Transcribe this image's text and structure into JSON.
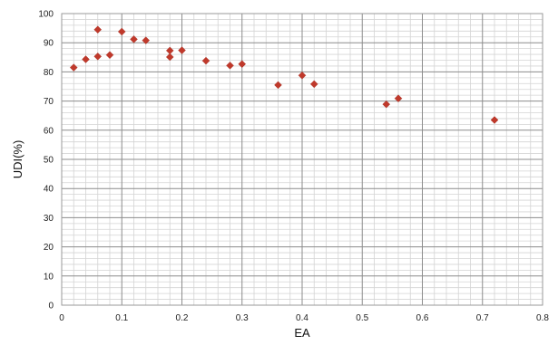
{
  "chart_data": {
    "type": "scatter",
    "title": "",
    "xlabel": "EA",
    "ylabel": "UDI(%)",
    "xlim": [
      0,
      0.8
    ],
    "ylim": [
      0,
      100
    ],
    "x_ticks": [
      "0",
      "0.1",
      "0.2",
      "0.3",
      "0.4",
      "0.5",
      "0.6",
      "0.7",
      "0.8"
    ],
    "y_ticks": [
      "0",
      "10",
      "20",
      "30",
      "40",
      "50",
      "60",
      "70",
      "80",
      "90",
      "100"
    ],
    "grid": true,
    "legend": "none",
    "marker": "diamond",
    "marker_color": "#C0392B",
    "series": [
      {
        "points": [
          {
            "x": 0.02,
            "y": 81.5
          },
          {
            "x": 0.04,
            "y": 84.3
          },
          {
            "x": 0.06,
            "y": 94.5
          },
          {
            "x": 0.06,
            "y": 85.3
          },
          {
            "x": 0.08,
            "y": 85.8
          },
          {
            "x": 0.1,
            "y": 93.8
          },
          {
            "x": 0.12,
            "y": 91.2
          },
          {
            "x": 0.14,
            "y": 90.8
          },
          {
            "x": 0.18,
            "y": 87.3
          },
          {
            "x": 0.18,
            "y": 85.1
          },
          {
            "x": 0.2,
            "y": 87.4
          },
          {
            "x": 0.24,
            "y": 83.8
          },
          {
            "x": 0.28,
            "y": 82.2
          },
          {
            "x": 0.3,
            "y": 82.7
          },
          {
            "x": 0.36,
            "y": 75.5
          },
          {
            "x": 0.4,
            "y": 78.8
          },
          {
            "x": 0.42,
            "y": 75.8
          },
          {
            "x": 0.54,
            "y": 68.9
          },
          {
            "x": 0.56,
            "y": 70.9
          },
          {
            "x": 0.72,
            "y": 63.5
          }
        ]
      }
    ]
  }
}
